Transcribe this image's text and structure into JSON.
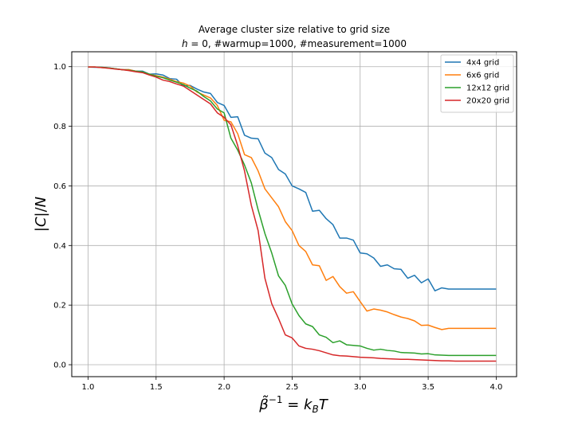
{
  "chart_data": {
    "type": "line",
    "title": "Average cluster size relative to grid size",
    "subtitle": "h = 0, #warmup=1000, #measurement=1000",
    "xlabel": "β̃⁻¹ = k_B T",
    "ylabel": "|C|/N",
    "xlim": [
      0.88,
      4.15
    ],
    "ylim": [
      -0.04,
      1.05
    ],
    "xticks": [
      1.0,
      1.5,
      2.0,
      2.5,
      3.0,
      3.5,
      4.0
    ],
    "xtick_labels": [
      "1.0",
      "1.5",
      "2.0",
      "2.5",
      "3.0",
      "3.5",
      "4.0"
    ],
    "yticks": [
      0.0,
      0.2,
      0.4,
      0.6,
      0.8,
      1.0
    ],
    "ytick_labels": [
      "0.0",
      "0.2",
      "0.4",
      "0.6",
      "0.8",
      "1.0"
    ],
    "grid": true,
    "legend_position": "top-right",
    "x": [
      1.0,
      1.05,
      1.1,
      1.15,
      1.2,
      1.25,
      1.3,
      1.35,
      1.4,
      1.45,
      1.5,
      1.55,
      1.6,
      1.65,
      1.7,
      1.75,
      1.8,
      1.85,
      1.9,
      1.95,
      2.0,
      2.05,
      2.1,
      2.15,
      2.2,
      2.25,
      2.3,
      2.35,
      2.4,
      2.45,
      2.5,
      2.55,
      2.6,
      2.65,
      2.7,
      2.75,
      2.8,
      2.85,
      2.9,
      2.95,
      3.0,
      3.05,
      3.1,
      3.15,
      3.2,
      3.25,
      3.3,
      3.35,
      3.4,
      3.45,
      3.5,
      3.55,
      3.6,
      3.65,
      3.7,
      3.75,
      3.8,
      3.85,
      3.9,
      3.95,
      4.0
    ],
    "series": [
      {
        "name": "4x4 grid",
        "color": "#1f77b4",
        "values": [
          0.999,
          0.998,
          0.998,
          0.996,
          0.993,
          0.99,
          0.99,
          0.985,
          0.985,
          0.975,
          0.976,
          0.972,
          0.96,
          0.958,
          0.935,
          0.937,
          0.925,
          0.915,
          0.91,
          0.88,
          0.87,
          0.83,
          0.832,
          0.77,
          0.76,
          0.758,
          0.71,
          0.695,
          0.655,
          0.64,
          0.6,
          0.59,
          0.578,
          0.515,
          0.518,
          0.49,
          0.47,
          0.425,
          0.425,
          0.418,
          0.375,
          0.372,
          0.358,
          0.33,
          0.335,
          0.322,
          0.32,
          0.29,
          0.3,
          0.275,
          0.288,
          0.248,
          0.258,
          0.254,
          0.254,
          0.254,
          0.254,
          0.254,
          0.254,
          0.254,
          0.254
        ]
      },
      {
        "name": "6x6 grid",
        "color": "#ff7f0e",
        "values": [
          0.999,
          0.999,
          0.997,
          0.995,
          0.993,
          0.99,
          0.99,
          0.985,
          0.982,
          0.975,
          0.97,
          0.965,
          0.958,
          0.95,
          0.945,
          0.935,
          0.915,
          0.905,
          0.895,
          0.87,
          0.82,
          0.815,
          0.775,
          0.705,
          0.695,
          0.65,
          0.59,
          0.56,
          0.53,
          0.48,
          0.45,
          0.4,
          0.38,
          0.335,
          0.332,
          0.283,
          0.296,
          0.262,
          0.24,
          0.245,
          0.212,
          0.18,
          0.187,
          0.183,
          0.177,
          0.168,
          0.16,
          0.155,
          0.147,
          0.132,
          0.133,
          0.125,
          0.118,
          0.122,
          0.122,
          0.122,
          0.122,
          0.122,
          0.122,
          0.122,
          0.122
        ]
      },
      {
        "name": "12x12 grid",
        "color": "#2ca02c",
        "values": [
          0.999,
          0.999,
          0.998,
          0.996,
          0.993,
          0.99,
          0.988,
          0.985,
          0.983,
          0.975,
          0.968,
          0.963,
          0.955,
          0.948,
          0.94,
          0.928,
          0.918,
          0.9,
          0.885,
          0.858,
          0.845,
          0.76,
          0.72,
          0.67,
          0.61,
          0.52,
          0.44,
          0.375,
          0.298,
          0.266,
          0.204,
          0.165,
          0.137,
          0.128,
          0.1,
          0.092,
          0.074,
          0.08,
          0.067,
          0.065,
          0.063,
          0.055,
          0.049,
          0.052,
          0.048,
          0.046,
          0.041,
          0.04,
          0.039,
          0.036,
          0.037,
          0.033,
          0.032,
          0.031,
          0.031,
          0.031,
          0.031,
          0.031,
          0.031,
          0.031,
          0.031
        ]
      },
      {
        "name": "20x20 grid",
        "color": "#d62728",
        "values": [
          0.999,
          0.999,
          0.997,
          0.995,
          0.992,
          0.99,
          0.987,
          0.983,
          0.98,
          0.972,
          0.965,
          0.955,
          0.95,
          0.942,
          0.935,
          0.92,
          0.905,
          0.89,
          0.875,
          0.845,
          0.83,
          0.805,
          0.735,
          0.65,
          0.535,
          0.45,
          0.29,
          0.205,
          0.155,
          0.1,
          0.09,
          0.063,
          0.055,
          0.052,
          0.047,
          0.04,
          0.033,
          0.03,
          0.029,
          0.027,
          0.025,
          0.024,
          0.023,
          0.021,
          0.02,
          0.019,
          0.018,
          0.018,
          0.017,
          0.016,
          0.015,
          0.014,
          0.013,
          0.013,
          0.012,
          0.012,
          0.012,
          0.012,
          0.012,
          0.012,
          0.012
        ]
      }
    ]
  }
}
